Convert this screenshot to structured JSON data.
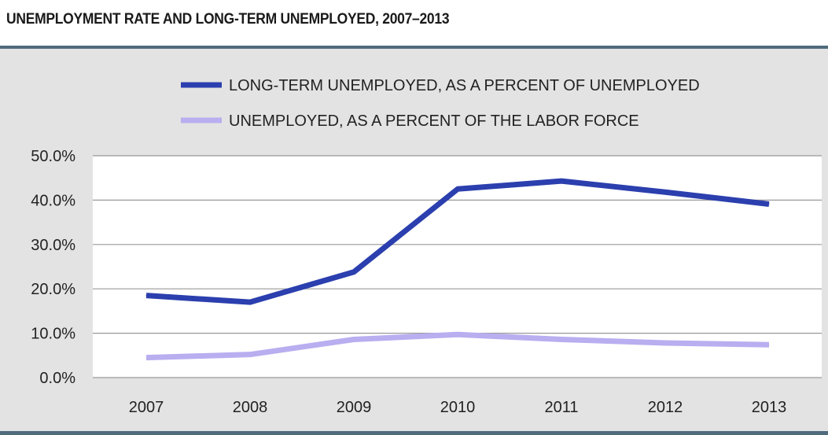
{
  "chart_data": {
    "type": "line",
    "title": "UNEMPLOYMENT RATE AND LONG-TERM UNEMPLOYED, 2007–2013",
    "categories": [
      "2007",
      "2008",
      "2009",
      "2010",
      "2011",
      "2012",
      "2013"
    ],
    "series": [
      {
        "name": "LONG-TERM UNEMPLOYED, AS A PERCENT OF UNEMPLOYED",
        "color": "#2b3fae",
        "values": [
          18.5,
          17.0,
          23.8,
          42.5,
          44.3,
          41.8,
          39.1
        ]
      },
      {
        "name": "UNEMPLOYED, AS A PERCENT OF THE LABOR FORCE",
        "color": "#b9aef0",
        "values": [
          4.5,
          5.2,
          8.6,
          9.7,
          8.6,
          7.8,
          7.4
        ]
      }
    ],
    "y_ticks": [
      "50.0%",
      "40.0%",
      "30.0%",
      "20.0%",
      "10.0%",
      "0.0%"
    ],
    "ylim": [
      0,
      50
    ],
    "grid": true,
    "legend_position": "top"
  },
  "colors": {
    "panel_bg": "#e3e3e3",
    "plot_bg": "#ffffff",
    "grid": "#999999",
    "rule": "#4f6b7d"
  }
}
